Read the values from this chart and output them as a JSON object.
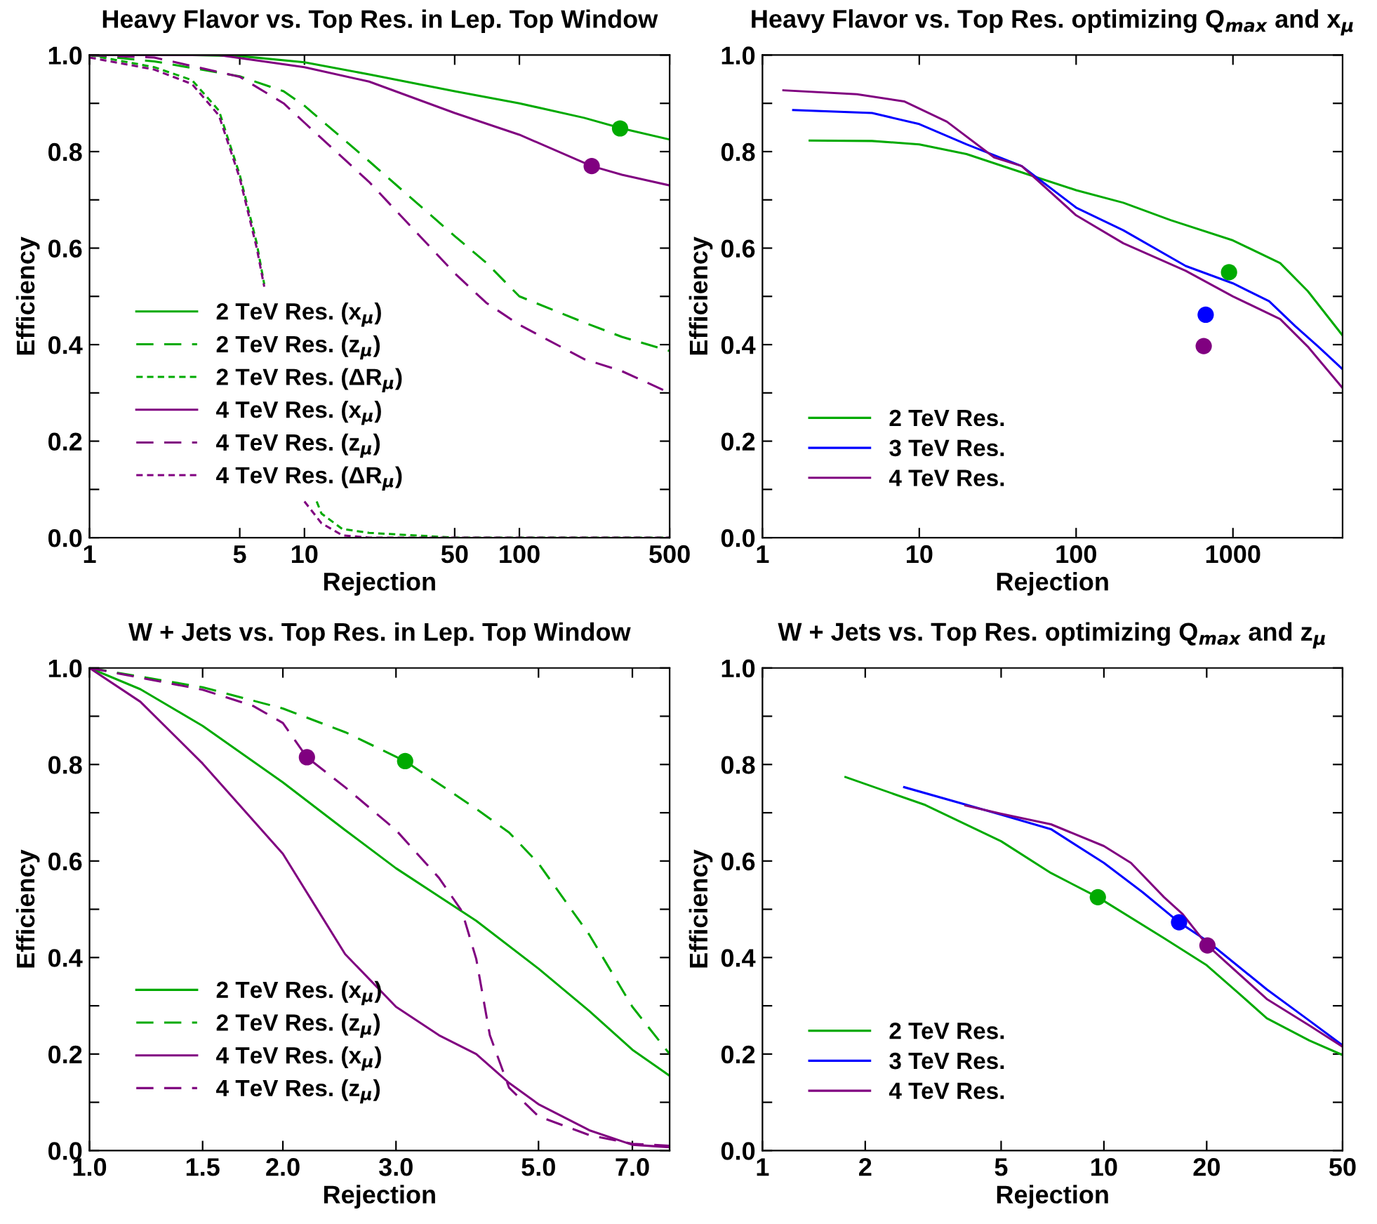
{
  "chart_data": [
    {
      "type": "line",
      "title": "Heavy Flavor vs. Top Res. in Lep. Top Window",
      "xlabel": "Rejection",
      "ylabel": "Efficiency",
      "log": "x",
      "xlim": [
        1,
        500
      ],
      "xticks": [
        1,
        5,
        10,
        50,
        100,
        500
      ],
      "ylim": [
        0,
        1
      ],
      "yticks": [
        {
          "value": 0,
          "label": "0.0"
        },
        {
          "value": 0.1,
          "label": null
        },
        {
          "value": 0.2,
          "label": "0.2"
        },
        {
          "value": 0.3,
          "label": null
        },
        {
          "value": 0.4,
          "label": "0.4"
        },
        {
          "value": 0.5,
          "label": null
        },
        {
          "value": 0.6,
          "label": "0.6"
        },
        {
          "value": 0.7,
          "label": null
        },
        {
          "value": 0.8,
          "label": "0.8"
        },
        {
          "value": 0.9,
          "label": null
        },
        {
          "value": 1,
          "label": "1.0"
        }
      ],
      "grid": false,
      "legend": "lower left",
      "series": [
        {
          "name": "2 TeV Res. (x$_{μ}$)",
          "color": "#00aa00",
          "line_style": "solid",
          "x": [
            1,
            3,
            5,
            10,
            20,
            50,
            100,
            200,
            300,
            500
          ],
          "values": [
            1.0,
            1.0,
            0.998,
            0.985,
            0.96,
            0.925,
            0.9,
            0.87,
            0.848,
            0.825
          ]
        },
        {
          "name": "2 TeV Res. (z$_{μ}$)",
          "color": "#00aa00",
          "line_style": "dashed",
          "x": [
            1,
            2,
            5,
            8,
            10,
            20,
            50,
            70,
            100,
            200,
            300,
            500
          ],
          "values": [
            1.0,
            0.987,
            0.956,
            0.925,
            0.895,
            0.78,
            0.625,
            0.57,
            0.5,
            0.446,
            0.416,
            0.387
          ]
        },
        {
          "name": "2 TeV Res. (ΔR$_{μ}$)",
          "color": "#00aa00",
          "line_style": "dotted",
          "x": [
            1,
            2,
            3,
            4,
            5,
            6,
            6.5,
            8,
            11.4,
            12,
            15,
            20,
            50,
            500
          ],
          "values": [
            1.0,
            0.975,
            0.948,
            0.885,
            0.752,
            0.61,
            0.525,
            null,
            0.075,
            0.05,
            0.018,
            0.01,
            0.0,
            0.0
          ]
        },
        {
          "name": "4 TeV Res. (x$_{μ}$)",
          "color": "#800080",
          "line_style": "solid",
          "x": [
            1,
            4,
            10,
            20,
            50,
            100,
            217,
            300,
            500
          ],
          "values": [
            1.0,
            1.0,
            0.975,
            0.945,
            0.88,
            0.835,
            0.77,
            0.752,
            0.73
          ]
        },
        {
          "name": "4 TeV Res. (z$_{μ}$)",
          "color": "#800080",
          "line_style": "dashed",
          "x": [
            1,
            2,
            5,
            8,
            10,
            20,
            50,
            70,
            100,
            200,
            300,
            500
          ],
          "values": [
            1.0,
            0.995,
            0.955,
            0.9,
            0.86,
            0.737,
            0.548,
            0.487,
            0.441,
            0.37,
            0.345,
            0.3
          ]
        },
        {
          "name": "4 TeV Res. (ΔR$_{μ}$)",
          "color": "#800080",
          "line_style": "dotted",
          "x": [
            1,
            2,
            3,
            4,
            5,
            6,
            6.5,
            8,
            10,
            12,
            15,
            20,
            500
          ],
          "values": [
            0.995,
            0.97,
            0.94,
            0.875,
            0.745,
            0.6,
            0.52,
            null,
            0.075,
            0.03,
            0.005,
            0.0,
            0.0
          ]
        },
        {
          "type": "scatter",
          "marker": "circle",
          "color": "#00aa00",
          "x": [
            294
          ],
          "values": [
            0.848
          ]
        },
        {
          "type": "scatter",
          "marker": "circle",
          "color": "#800080",
          "x": [
            217
          ],
          "values": [
            0.77
          ]
        }
      ]
    },
    {
      "type": "line",
      "title": "Heavy Flavor vs. Top Res. optimizing Q$_{max}$ and x$_{μ}$",
      "xlabel": "Rejection",
      "ylabel": "Efficiency",
      "log": "x",
      "xlim": [
        1,
        5000
      ],
      "xticks": [
        1,
        10,
        100,
        1000
      ],
      "ylim": [
        0,
        1
      ],
      "yticks": [
        {
          "value": 0,
          "label": "0.0"
        },
        {
          "value": 0.1,
          "label": null
        },
        {
          "value": 0.2,
          "label": "0.2"
        },
        {
          "value": 0.3,
          "label": null
        },
        {
          "value": 0.4,
          "label": "0.4"
        },
        {
          "value": 0.5,
          "label": null
        },
        {
          "value": 0.6,
          "label": "0.6"
        },
        {
          "value": 0.7,
          "label": null
        },
        {
          "value": 0.8,
          "label": "0.8"
        },
        {
          "value": 0.9,
          "label": null
        },
        {
          "value": 1,
          "label": "1.0"
        }
      ],
      "grid": false,
      "legend": "lower left",
      "series": [
        {
          "name": "2 TeV Res.",
          "color": "#00aa00",
          "line_style": "solid",
          "x": [
            2,
            5,
            10,
            20,
            50,
            100,
            200,
            400,
            1000,
            2000,
            3000,
            5000
          ],
          "values": [
            0.823,
            0.822,
            0.815,
            0.795,
            0.752,
            0.72,
            0.694,
            0.658,
            0.616,
            0.569,
            0.511,
            0.419
          ]
        },
        {
          "name": "3 TeV Res.",
          "color": "#0000ff",
          "line_style": "solid",
          "x": [
            1.57,
            5,
            10,
            20,
            45,
            100,
            200,
            500,
            1000,
            1700,
            2500,
            3500,
            5000
          ],
          "values": [
            0.886,
            0.88,
            0.857,
            0.815,
            0.77,
            0.684,
            0.637,
            0.563,
            0.527,
            0.49,
            0.438,
            0.396,
            0.349
          ]
        },
        {
          "name": "4 TeV Res.",
          "color": "#800080",
          "line_style": "solid",
          "x": [
            1.36,
            4,
            8,
            15,
            30,
            45,
            100,
            200,
            500,
            1000,
            2000,
            3000,
            5000
          ],
          "values": [
            0.927,
            0.919,
            0.904,
            0.862,
            0.788,
            0.77,
            0.668,
            0.61,
            0.553,
            0.5,
            0.453,
            0.396,
            0.31
          ]
        },
        {
          "type": "scatter",
          "marker": "circle",
          "color": "#00aa00",
          "x": [
            944
          ],
          "values": [
            0.55
          ]
        },
        {
          "type": "scatter",
          "marker": "circle",
          "color": "#0000ff",
          "x": [
            670
          ],
          "values": [
            0.462
          ]
        },
        {
          "type": "scatter",
          "marker": "circle",
          "color": "#800080",
          "x": [
            651
          ],
          "values": [
            0.397
          ]
        }
      ]
    },
    {
      "type": "line",
      "title": "W + Jets vs. Top Res. in Lep. Top Window",
      "xlabel": "Rejection",
      "ylabel": "Efficiency",
      "log": "x",
      "xlim": [
        1,
        8
      ],
      "xticks": [
        {
          "value": 1,
          "label": "1.0"
        },
        {
          "value": 1.5,
          "label": "1.5"
        },
        {
          "value": 2,
          "label": "2.0"
        },
        {
          "value": 3,
          "label": "3.0"
        },
        {
          "value": 5,
          "label": "5.0"
        },
        {
          "value": 7,
          "label": "7.0"
        }
      ],
      "ylim": [
        0,
        1
      ],
      "yticks": [
        {
          "value": 0,
          "label": "0.0"
        },
        {
          "value": 0.1,
          "label": null
        },
        {
          "value": 0.2,
          "label": "0.2"
        },
        {
          "value": 0.3,
          "label": null
        },
        {
          "value": 0.4,
          "label": "0.4"
        },
        {
          "value": 0.5,
          "label": null
        },
        {
          "value": 0.6,
          "label": "0.6"
        },
        {
          "value": 0.7,
          "label": null
        },
        {
          "value": 0.8,
          "label": "0.8"
        },
        {
          "value": 0.9,
          "label": null
        },
        {
          "value": 1,
          "label": "1.0"
        }
      ],
      "grid": false,
      "legend": "lower left",
      "series": [
        {
          "name": "2 TeV Res. (x$_{μ}$)",
          "color": "#00aa00",
          "line_style": "solid",
          "x": [
            1,
            1.2,
            1.5,
            2,
            2.5,
            3,
            4,
            5,
            6,
            7,
            8
          ],
          "values": [
            1.0,
            0.956,
            0.88,
            0.763,
            0.664,
            0.585,
            0.476,
            0.377,
            0.289,
            0.209,
            0.155
          ]
        },
        {
          "name": "2 TeV Res. (z$_{μ}$)",
          "color": "#00aa00",
          "line_style": "dashed",
          "x": [
            1,
            1.5,
            2,
            2.5,
            3.1,
            4,
            4.5,
            5,
            6,
            7,
            8
          ],
          "values": [
            1.0,
            0.96,
            0.916,
            0.867,
            0.807,
            0.708,
            0.659,
            0.595,
            0.447,
            0.298,
            0.2
          ]
        },
        {
          "name": "4 TeV Res. (x$_{μ}$)",
          "color": "#800080",
          "line_style": "solid",
          "x": [
            1,
            1.2,
            1.5,
            2,
            2.2,
            2.5,
            3,
            3.5,
            4,
            4.5,
            5,
            6,
            7,
            8
          ],
          "values": [
            1.0,
            0.93,
            0.802,
            0.615,
            0.526,
            0.407,
            0.298,
            0.239,
            0.2,
            0.14,
            0.096,
            0.042,
            0.012,
            0.007
          ]
        },
        {
          "name": "4 TeV Res. (z$_{μ}$)",
          "color": "#800080",
          "line_style": "dashed",
          "x": [
            1,
            1.5,
            1.8,
            2,
            2.18,
            2.5,
            3,
            3.5,
            3.8,
            4,
            4.2,
            4.5,
            5,
            6,
            7,
            8
          ],
          "values": [
            1.0,
            0.955,
            0.921,
            0.886,
            0.815,
            0.753,
            0.664,
            0.565,
            0.496,
            0.397,
            0.239,
            0.13,
            0.071,
            0.032,
            0.014,
            0.01
          ]
        },
        {
          "type": "scatter",
          "marker": "circle",
          "color": "#800080",
          "x": [
            2.18
          ],
          "values": [
            0.815
          ]
        },
        {
          "type": "scatter",
          "marker": "circle",
          "color": "#00aa00",
          "x": [
            3.1
          ],
          "values": [
            0.807
          ]
        }
      ]
    },
    {
      "type": "line",
      "title": "W + Jets vs. Top Res. optimizing Q$_{max}$ and z$_{μ}$",
      "xlabel": "Rejection",
      "ylabel": "Efficiency",
      "log": "x",
      "xlim": [
        1,
        50
      ],
      "xticks": [
        1,
        2,
        5,
        10,
        20,
        50
      ],
      "ylim": [
        0,
        1
      ],
      "yticks": [
        {
          "value": 0,
          "label": "0.0"
        },
        {
          "value": 0.1,
          "label": null
        },
        {
          "value": 0.2,
          "label": "0.2"
        },
        {
          "value": 0.3,
          "label": null
        },
        {
          "value": 0.4,
          "label": "0.4"
        },
        {
          "value": 0.5,
          "label": null
        },
        {
          "value": 0.6,
          "label": "0.6"
        },
        {
          "value": 0.7,
          "label": null
        },
        {
          "value": 0.8,
          "label": "0.8"
        },
        {
          "value": 0.9,
          "label": null
        },
        {
          "value": 1,
          "label": "1.0"
        }
      ],
      "grid": false,
      "legend": "lower left",
      "series": [
        {
          "name": "2 TeV Res.",
          "color": "#00aa00",
          "line_style": "solid",
          "x": [
            1.75,
            3,
            5,
            7,
            9.6,
            15,
            20,
            25,
            30,
            40,
            50
          ],
          "values": [
            0.774,
            0.716,
            0.641,
            0.575,
            0.525,
            0.44,
            0.384,
            0.324,
            0.274,
            0.228,
            0.198
          ]
        },
        {
          "name": "3 TeV Res.",
          "color": "#0000ff",
          "line_style": "solid",
          "x": [
            2.6,
            5,
            7,
            10,
            13,
            16.6,
            20,
            30,
            40,
            50
          ],
          "values": [
            0.753,
            0.696,
            0.666,
            0.596,
            0.535,
            0.473,
            0.435,
            0.334,
            0.269,
            0.218
          ]
        },
        {
          "name": "4 TeV Res.",
          "color": "#800080",
          "line_style": "solid",
          "x": [
            3.93,
            5,
            7,
            10,
            12,
            15,
            17,
            20.1,
            30,
            40,
            50
          ],
          "values": [
            0.715,
            0.698,
            0.676,
            0.631,
            0.596,
            0.525,
            0.49,
            0.425,
            0.314,
            0.259,
            0.215
          ]
        },
        {
          "type": "scatter",
          "marker": "circle",
          "color": "#00aa00",
          "x": [
            9.6
          ],
          "values": [
            0.525
          ]
        },
        {
          "type": "scatter",
          "marker": "circle",
          "color": "#0000ff",
          "x": [
            16.6
          ],
          "values": [
            0.473
          ]
        },
        {
          "type": "scatter",
          "marker": "circle",
          "color": "#800080",
          "x": [
            20.1
          ],
          "values": [
            0.425
          ]
        }
      ]
    }
  ]
}
